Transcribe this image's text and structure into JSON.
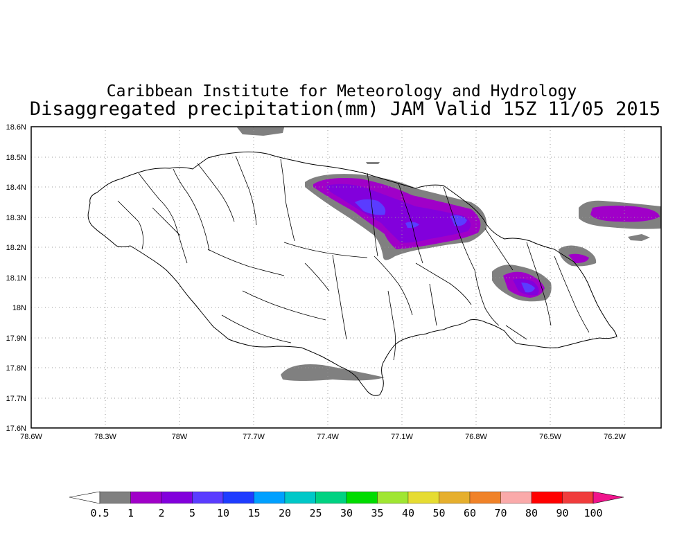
{
  "title": {
    "line1": "Caribbean Institute for Meteorology and Hydrology",
    "line2": "Disaggregated precipitation(mm) JAM Valid 15Z 11/05 2015"
  },
  "axes": {
    "y_ticks": [
      "18.6N",
      "18.5N",
      "18.4N",
      "18.3N",
      "18.2N",
      "18.1N",
      "18N",
      "17.9N",
      "17.8N",
      "17.7N",
      "17.6N"
    ],
    "x_ticks": [
      "78.6W",
      "78.3W",
      "78W",
      "77.7W",
      "77.4W",
      "77.1W",
      "76.8W",
      "76.5W",
      "76.2W"
    ]
  },
  "colorbar": {
    "labels": [
      "0.5",
      "1",
      "2",
      "5",
      "10",
      "15",
      "20",
      "25",
      "30",
      "35",
      "40",
      "50",
      "60",
      "70",
      "80",
      "90",
      "100"
    ],
    "colors": [
      "#808080",
      "#a000c8",
      "#8200dc",
      "#5a3cff",
      "#1e3cff",
      "#00a0ff",
      "#00c8c8",
      "#00d282",
      "#00dc00",
      "#a0e632",
      "#e6dc32",
      "#e6af2d",
      "#f08228",
      "#faaaaa",
      "#ff0000",
      "#f03c3c",
      "#f0148c"
    ]
  },
  "map_data": {
    "region": "Jamaica",
    "lon_range": [
      -78.6,
      -76.05
    ],
    "lat_range": [
      17.6,
      18.6
    ],
    "grid": true,
    "precip_areas": [
      {
        "name": "north-central",
        "levels": [
          "0.5",
          "1",
          "2",
          "5"
        ]
      },
      {
        "name": "east-central",
        "levels": [
          "0.5",
          "1",
          "2",
          "5"
        ]
      },
      {
        "name": "east-small",
        "levels": [
          "0.5",
          "1"
        ]
      },
      {
        "name": "offshore-northeast",
        "levels": [
          "0.5",
          "1"
        ]
      },
      {
        "name": "offshore-south",
        "levels": [
          "0.5"
        ]
      },
      {
        "name": "offshore-north",
        "levels": [
          "0.5"
        ]
      }
    ]
  }
}
